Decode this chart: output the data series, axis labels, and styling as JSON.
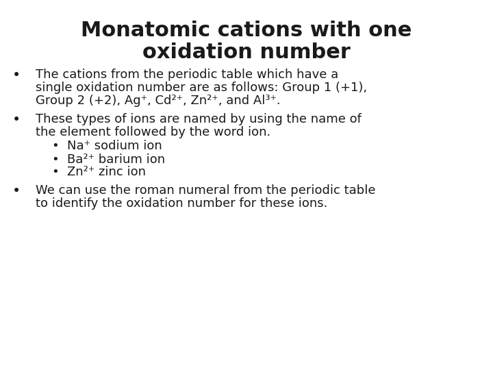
{
  "title_line1": "Monatomic cations with one",
  "title_line2": "oxidation number",
  "background_color": "#ffffff",
  "text_color": "#1a1a1a",
  "title_fontsize": 22,
  "body_fontsize": 13,
  "sub_fontsize": 13,
  "bullet1_line1": "The cations from the periodic table which have a",
  "bullet1_line2": "single oxidation number are as follows: Group 1 (+1),",
  "bullet1_line3": "Group 2 (+2), Ag⁺, Cd²⁺, Zn²⁺, and Al³⁺.",
  "bullet2_line1": "These types of ions are named by using the name of",
  "bullet2_line2": "the element followed by the word ion.",
  "sub1": "Na⁺ sodium ion",
  "sub2": "Ba²⁺ barium ion",
  "sub3": "Zn²⁺ zinc ion",
  "bullet3_line1": "We can use the roman numeral from the periodic table",
  "bullet3_line2": "to identify the oxidation number for these ions."
}
